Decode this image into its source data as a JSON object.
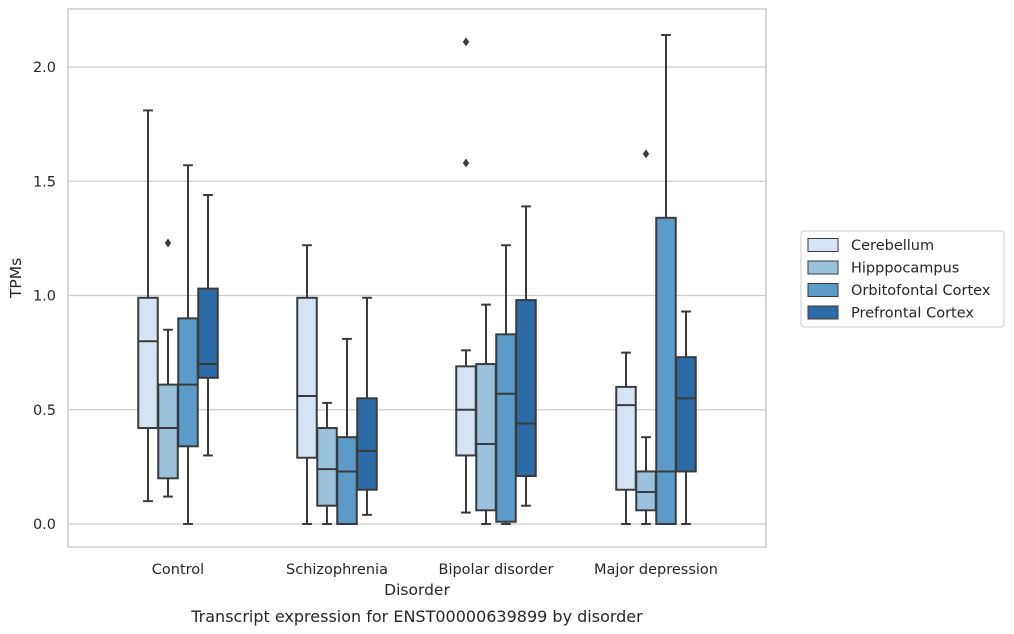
{
  "chart_data": {
    "type": "boxplot",
    "caption": "Transcript expression for ENST00000639899 by disorder",
    "xlabel": "Disorder",
    "ylabel": "TPMs",
    "ylim": [
      -0.1,
      2.25
    ],
    "yticks": [
      "0.0",
      "0.5",
      "1.0",
      "1.5",
      "2.0"
    ],
    "ytick_values": [
      0,
      0.5,
      1.0,
      1.5,
      2.0
    ],
    "grid": true,
    "legend_position": "right",
    "categories": [
      "Control",
      "Schizophrenia",
      "Bipolar disorder",
      "Major depression"
    ],
    "series": [
      {
        "name": "Cerebellum",
        "color": "#d5e4f2",
        "boxes": [
          {
            "min": 0.1,
            "q1": 0.42,
            "median": 0.8,
            "q3": 0.99,
            "max": 1.81,
            "outliers": []
          },
          {
            "min": 0.0,
            "q1": 0.29,
            "median": 0.56,
            "q3": 0.99,
            "max": 1.22,
            "outliers": []
          },
          {
            "min": 0.05,
            "q1": 0.3,
            "median": 0.5,
            "q3": 0.69,
            "max": 0.76,
            "outliers": [
              1.58,
              2.11
            ]
          },
          {
            "min": 0.0,
            "q1": 0.15,
            "median": 0.52,
            "q3": 0.6,
            "max": 0.75,
            "outliers": []
          }
        ]
      },
      {
        "name": "Hipppocampus",
        "color": "#9ac2dc",
        "boxes": [
          {
            "min": 0.12,
            "q1": 0.2,
            "median": 0.42,
            "q3": 0.61,
            "max": 0.85,
            "outliers": [
              1.23
            ]
          },
          {
            "min": 0.0,
            "q1": 0.08,
            "median": 0.24,
            "q3": 0.42,
            "max": 0.53,
            "outliers": []
          },
          {
            "min": 0.0,
            "q1": 0.06,
            "median": 0.35,
            "q3": 0.7,
            "max": 0.96,
            "outliers": []
          },
          {
            "min": 0.0,
            "q1": 0.06,
            "median": 0.14,
            "q3": 0.23,
            "max": 0.38,
            "outliers": [
              1.62
            ]
          }
        ]
      },
      {
        "name": "Orbitofontal Cortex",
        "color": "#5b9bc9",
        "boxes": [
          {
            "min": 0.0,
            "q1": 0.34,
            "median": 0.61,
            "q3": 0.9,
            "max": 1.57,
            "outliers": []
          },
          {
            "min": 0.0,
            "q1": 0.0,
            "median": 0.23,
            "q3": 0.38,
            "max": 0.81,
            "outliers": []
          },
          {
            "min": 0.0,
            "q1": 0.01,
            "median": 0.57,
            "q3": 0.83,
            "max": 1.22,
            "outliers": []
          },
          {
            "min": 0.0,
            "q1": 0.0,
            "median": 0.23,
            "q3": 1.34,
            "max": 2.14,
            "outliers": []
          }
        ]
      },
      {
        "name": "Prefrontal Cortex",
        "color": "#2c6ba6",
        "boxes": [
          {
            "min": 0.3,
            "q1": 0.64,
            "median": 0.7,
            "q3": 1.03,
            "max": 1.44,
            "outliers": []
          },
          {
            "min": 0.04,
            "q1": 0.15,
            "median": 0.32,
            "q3": 0.55,
            "max": 0.99,
            "outliers": []
          },
          {
            "min": 0.08,
            "q1": 0.21,
            "median": 0.44,
            "q3": 0.98,
            "max": 1.39,
            "outliers": []
          },
          {
            "min": 0.0,
            "q1": 0.23,
            "median": 0.55,
            "q3": 0.73,
            "max": 0.93,
            "outliers": []
          }
        ]
      }
    ]
  }
}
